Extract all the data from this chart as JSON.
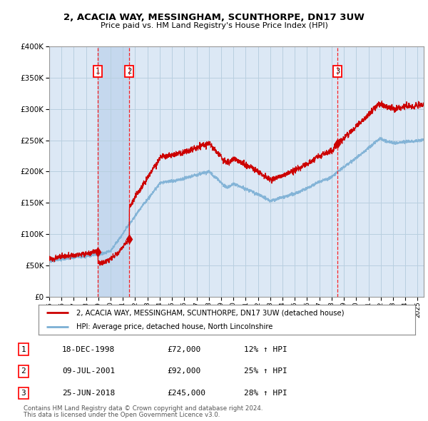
{
  "title": "2, ACACIA WAY, MESSINGHAM, SCUNTHORPE, DN17 3UW",
  "subtitle": "Price paid vs. HM Land Registry's House Price Index (HPI)",
  "legend_line1": "2, ACACIA WAY, MESSINGHAM, SCUNTHORPE, DN17 3UW (detached house)",
  "legend_line2": "HPI: Average price, detached house, North Lincolnshire",
  "footnote1": "Contains HM Land Registry data © Crown copyright and database right 2024.",
  "footnote2": "This data is licensed under the Open Government Licence v3.0.",
  "transactions": [
    {
      "num": 1,
      "date": "18-DEC-1998",
      "price": 72000,
      "hpi_pct": "12% ↑ HPI",
      "x_year": 1998.97
    },
    {
      "num": 2,
      "date": "09-JUL-2001",
      "price": 92000,
      "hpi_pct": "25% ↑ HPI",
      "x_year": 2001.52
    },
    {
      "num": 3,
      "date": "25-JUN-2018",
      "price": 245000,
      "hpi_pct": "28% ↑ HPI",
      "x_year": 2018.48
    }
  ],
  "hpi_color": "#7bafd4",
  "price_color": "#cc0000",
  "chart_bg": "#dce8f5",
  "grid_color": "#b8cfe0",
  "ylim": [
    0,
    400000
  ],
  "xlim_start": 1995.0,
  "xlim_end": 2025.5,
  "shade_color": "#c5d8ee"
}
